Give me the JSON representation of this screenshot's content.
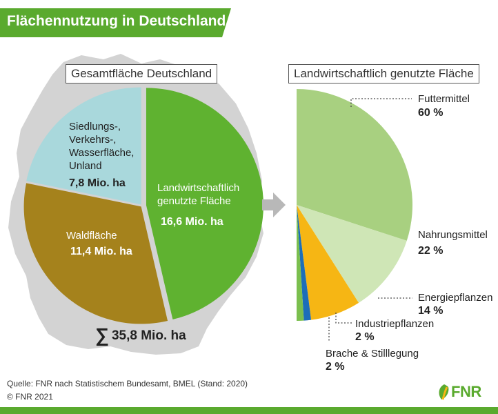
{
  "header": {
    "title": "Flächennutzung in Deutschland"
  },
  "colors": {
    "green_brand": "#5aaa2e",
    "landwirtschaft": "#5fb230",
    "wald": "#a5821c",
    "siedlung": "#a9d8dc",
    "futter": "#a8d080",
    "nahrung": "#cfe6b6",
    "energie": "#f6b614",
    "industrie": "#1c6eb8",
    "brache": "#7bbf4e",
    "map": "#d3d3d3"
  },
  "chart_data": [
    {
      "type": "pie",
      "title": "Gesamtfläche Deutschland",
      "unit": "Mio. ha",
      "slices": [
        {
          "id": "landwirtschaft",
          "label": "Landwirtschaftlich genutzte Fläche",
          "value": 16.6,
          "value_label": "16,6 Mio. ha"
        },
        {
          "id": "wald",
          "label": "Waldfläche",
          "value": 11.4,
          "value_label": "11,4 Mio. ha"
        },
        {
          "id": "siedlung",
          "label": "Siedlungs-, Verkehrs-, Wasserfläche, Unland",
          "value": 7.8,
          "value_label": "7,8 Mio. ha"
        }
      ],
      "total": 35.8,
      "total_label": "35,8 Mio. ha",
      "total_symbol": "∑"
    },
    {
      "type": "pie",
      "title": "Landwirtschaftlich genutzte Fläche",
      "unit": "%",
      "slices": [
        {
          "id": "futter",
          "label": "Futtermittel",
          "value": 60,
          "value_label": "60 %"
        },
        {
          "id": "nahrung",
          "label": "Nahrungsmittel",
          "value": 22,
          "value_label": "22 %"
        },
        {
          "id": "energie",
          "label": "Energiepflanzen",
          "value": 14,
          "value_label": "14 %"
        },
        {
          "id": "industrie",
          "label": "Industriepflanzen",
          "value": 2,
          "value_label": "2 %"
        },
        {
          "id": "brache",
          "label": "Brache & Stilllegung",
          "value": 2,
          "value_label": "2 %"
        }
      ]
    }
  ],
  "left_labels": {
    "siedlung_lines": [
      "Siedlungs-,",
      "Verkehrs-,",
      "Wasserfläche,",
      "Unland"
    ],
    "landwirtschaft_lines": [
      "Landwirtschaftlich",
      "genutzte Fläche"
    ]
  },
  "footer": {
    "source": "Quelle: FNR nach Statistischem Bundesamt, BMEL (Stand: 2020)",
    "copyright": "© FNR 2021"
  },
  "logo": {
    "text": "FNR"
  }
}
